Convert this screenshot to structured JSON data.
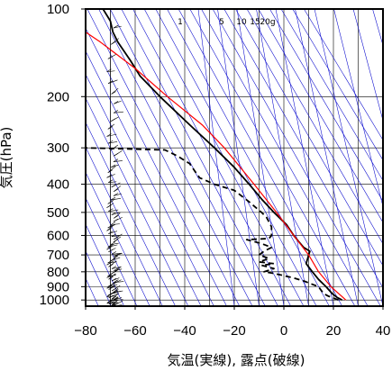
{
  "chart_data": {
    "type": "line",
    "subtype": "skew-T log-p aerological diagram",
    "xlabel": "気温(実線), 露点(破線)",
    "ylabel": "気圧(hPa)",
    "x_ticks": [
      -80,
      -60,
      -40,
      -20,
      0,
      20,
      40
    ],
    "y_ticks": [
      100,
      200,
      300,
      400,
      500,
      600,
      700,
      800,
      900,
      1000
    ],
    "xlim": [
      -80,
      40
    ],
    "ylim": [
      1050,
      100
    ],
    "y_scale": "log",
    "grid": true,
    "mixing_ratio_labels": [
      "1",
      "5",
      "10",
      "15",
      "20g"
    ],
    "colors": {
      "temperature": "#000000",
      "dewpoint": "#000000",
      "reference_curve": "#ff0000",
      "adiabats": "#0000cc",
      "grid": "#000000",
      "wind_barbs": "#000000"
    },
    "series": [
      {
        "id": "temperature",
        "style": "solid",
        "points": [
          {
            "p": 1000,
            "t": 23.5
          },
          {
            "p": 980,
            "t": 21.5
          },
          {
            "p": 950,
            "t": 19.5
          },
          {
            "p": 900,
            "t": 17
          },
          {
            "p": 850,
            "t": 14
          },
          {
            "p": 800,
            "t": 11.5
          },
          {
            "p": 750,
            "t": 9
          },
          {
            "p": 700,
            "t": 10
          },
          {
            "p": 680,
            "t": 10.5
          },
          {
            "p": 660,
            "t": 8
          },
          {
            "p": 630,
            "t": 6
          },
          {
            "p": 600,
            "t": 4
          },
          {
            "p": 550,
            "t": 1
          },
          {
            "p": 500,
            "t": -4
          },
          {
            "p": 450,
            "t": -9
          },
          {
            "p": 400,
            "t": -14
          },
          {
            "p": 350,
            "t": -20
          },
          {
            "p": 300,
            "t": -28
          },
          {
            "p": 250,
            "t": -38
          },
          {
            "p": 200,
            "t": -50
          },
          {
            "p": 170,
            "t": -58
          },
          {
            "p": 150,
            "t": -62
          },
          {
            "p": 130,
            "t": -67
          },
          {
            "p": 120,
            "t": -69
          },
          {
            "p": 110,
            "t": -70
          },
          {
            "p": 100,
            "t": -73
          }
        ]
      },
      {
        "id": "dewpoint",
        "style": "dashed",
        "points": [
          {
            "p": 1000,
            "t": 22
          },
          {
            "p": 970,
            "t": 18
          },
          {
            "p": 950,
            "t": 16
          },
          {
            "p": 900,
            "t": 14
          },
          {
            "p": 860,
            "t": 8
          },
          {
            "p": 840,
            "t": 4
          },
          {
            "p": 810,
            "t": -4
          },
          {
            "p": 800,
            "t": -8
          },
          {
            "p": 780,
            "t": -4
          },
          {
            "p": 760,
            "t": -9
          },
          {
            "p": 750,
            "t": -4
          },
          {
            "p": 740,
            "t": -10
          },
          {
            "p": 720,
            "t": -6
          },
          {
            "p": 700,
            "t": -10
          },
          {
            "p": 680,
            "t": -8
          },
          {
            "p": 660,
            "t": -5
          },
          {
            "p": 640,
            "t": -9
          },
          {
            "p": 620,
            "t": -15
          },
          {
            "p": 615,
            "t": -6
          },
          {
            "p": 600,
            "t": -5
          },
          {
            "p": 560,
            "t": -5
          },
          {
            "p": 520,
            "t": -7
          },
          {
            "p": 500,
            "t": -9
          },
          {
            "p": 460,
            "t": -14
          },
          {
            "p": 420,
            "t": -20
          },
          {
            "p": 400,
            "t": -28
          },
          {
            "p": 380,
            "t": -34
          },
          {
            "p": 360,
            "t": -36
          },
          {
            "p": 340,
            "t": -38
          },
          {
            "p": 320,
            "t": -43
          },
          {
            "p": 305,
            "t": -48
          },
          {
            "p": 300,
            "t": -80
          }
        ]
      },
      {
        "id": "reference",
        "style": "solid-red",
        "points": [
          {
            "p": 1000,
            "t": 25
          },
          {
            "p": 900,
            "t": 19
          },
          {
            "p": 800,
            "t": 14
          },
          {
            "p": 700,
            "t": 10
          },
          {
            "p": 600,
            "t": 4
          },
          {
            "p": 500,
            "t": -3
          },
          {
            "p": 400,
            "t": -12
          },
          {
            "p": 300,
            "t": -24
          },
          {
            "p": 250,
            "t": -33
          },
          {
            "p": 200,
            "t": -47
          },
          {
            "p": 160,
            "t": -60
          },
          {
            "p": 130,
            "t": -74
          },
          {
            "p": 120,
            "t": -80
          }
        ]
      }
    ],
    "wind_profile": {
      "position": "left-side column",
      "levels": 80
    }
  }
}
